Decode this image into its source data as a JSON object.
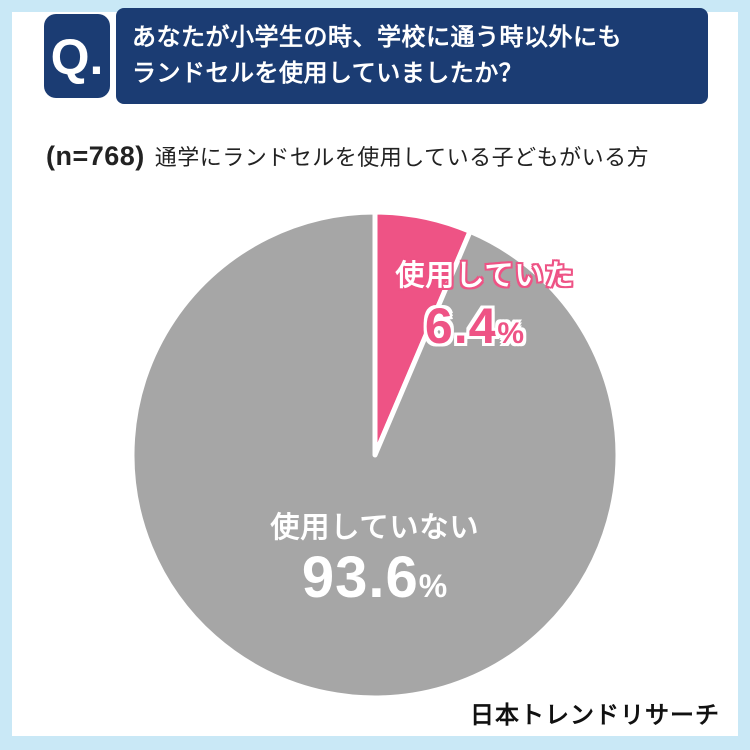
{
  "colors": {
    "frame": "#c9e8f6",
    "navy": "#1b3c73",
    "pink": "#ee5385",
    "gray": "#a6a6a6",
    "white": "#ffffff"
  },
  "header": {
    "q_label": "Q.",
    "question_line1": "あなたが小学生の時、学校に通う時以外にも",
    "question_line2": "ランドセルを使用していましたか？"
  },
  "subtitle": {
    "n_label": "(n=768)",
    "text": "通学にランドセルを使用している子どもがいる方"
  },
  "chart_data": {
    "type": "pie",
    "title": "あなたが小学生の時、学校に通う時以外にもランドセルを使用していましたか？",
    "sample_size": 768,
    "start_angle_deg": 0,
    "direction": "clockwise",
    "slices": [
      {
        "label": "使用していた",
        "value": 6.4,
        "color": "#ee5385"
      },
      {
        "label": "使用していない",
        "value": 93.6,
        "color": "#a6a6a6"
      }
    ]
  },
  "labels": {
    "pink_label": "使用していた",
    "pink_value": "6.4",
    "pink_unit": "%",
    "gray_label": "使用していない",
    "gray_value": "93.6",
    "gray_unit": "%"
  },
  "footer": {
    "brand": "日本トレンドリサーチ"
  }
}
